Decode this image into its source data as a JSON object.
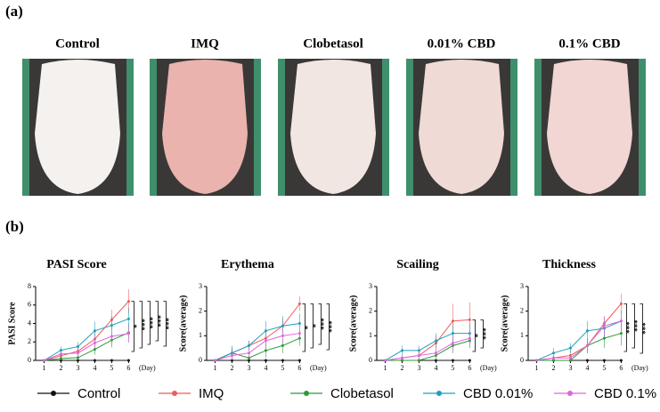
{
  "panels": {
    "a": "(a)",
    "b": "(b)"
  },
  "photos": [
    "Control",
    "IMQ",
    "Clobetasol",
    "0.01% CBD",
    "0.1% CBD"
  ],
  "chart_data": [
    {
      "type": "line",
      "title": "PASI Score",
      "y_label": "PASI Score",
      "x_unit": "(Day)",
      "x": [
        1,
        2,
        3,
        4,
        5,
        6
      ],
      "xlim": [
        0.5,
        6.4
      ],
      "xticks": [
        1,
        2,
        3,
        4,
        5,
        6
      ],
      "ylim": [
        0,
        8
      ],
      "yticks": [
        0,
        2,
        4,
        6,
        8
      ],
      "series": [
        {
          "name": "Control",
          "color": "#111111",
          "values": [
            0,
            0,
            0,
            0,
            0,
            0
          ],
          "errors": [
            0,
            0,
            0,
            0,
            0,
            0
          ]
        },
        {
          "name": "IMQ",
          "color": "#ef5b5b",
          "values": [
            0,
            0.5,
            1.0,
            2.3,
            4.4,
            6.4
          ],
          "errors": [
            0,
            0.3,
            0.4,
            0.8,
            1.1,
            1.3
          ]
        },
        {
          "name": "Clobetasol",
          "color": "#2b9a36",
          "values": [
            0,
            0.2,
            0.3,
            1.2,
            2.2,
            3.0
          ],
          "errors": [
            0,
            0.2,
            0.3,
            0.6,
            0.8,
            1.0
          ]
        },
        {
          "name": "CBD 0.01%",
          "color": "#1e9fbb",
          "values": [
            0,
            1.1,
            1.5,
            3.2,
            3.8,
            4.5
          ],
          "errors": [
            0,
            0.4,
            0.5,
            1.0,
            1.0,
            1.2
          ]
        },
        {
          "name": "CBD 0.1%",
          "color": "#e064e0",
          "values": [
            0,
            0.7,
            0.8,
            1.9,
            2.6,
            2.9
          ],
          "errors": [
            0,
            0.3,
            0.4,
            0.7,
            0.9,
            1.0
          ]
        }
      ],
      "annotations": [
        "*",
        "***",
        "***",
        "***",
        "***"
      ]
    },
    {
      "type": "line",
      "title": "Erythema",
      "y_label": "Score(average)",
      "x_unit": "(Day)",
      "x": [
        1,
        2,
        3,
        4,
        5,
        6
      ],
      "xlim": [
        0.5,
        6.4
      ],
      "xticks": [
        1,
        2,
        3,
        4,
        5,
        6
      ],
      "ylim": [
        0,
        3
      ],
      "yticks": [
        0,
        1,
        2,
        3
      ],
      "series": [
        {
          "values": [
            0,
            0,
            0,
            0,
            0,
            0
          ],
          "errors": [
            0,
            0,
            0,
            0,
            0,
            0
          ]
        },
        {
          "values": [
            0,
            0.3,
            0.6,
            0.9,
            1.4,
            2.3
          ],
          "errors": [
            0,
            0.2,
            0.2,
            0.3,
            0.3,
            0.3
          ]
        },
        {
          "values": [
            0,
            0.3,
            0.1,
            0.4,
            0.6,
            0.9
          ],
          "errors": [
            0,
            0.2,
            0.1,
            0.3,
            0.3,
            0.3
          ]
        },
        {
          "values": [
            0,
            0.3,
            0.6,
            1.2,
            1.4,
            1.5
          ],
          "errors": [
            0,
            0.3,
            0.2,
            0.4,
            0.4,
            0.4
          ]
        },
        {
          "values": [
            0,
            0.2,
            0.3,
            0.8,
            1.0,
            1.1
          ],
          "errors": [
            0,
            0.2,
            0.2,
            0.3,
            0.3,
            0.3
          ]
        }
      ],
      "annotations": [
        "*",
        "*",
        "***",
        "***"
      ]
    },
    {
      "type": "line",
      "title": "Scailing",
      "y_label": "Score(average)",
      "x_unit": "(Day)",
      "x": [
        1,
        2,
        3,
        4,
        5,
        6
      ],
      "xlim": [
        0.5,
        6.4
      ],
      "xticks": [
        1,
        2,
        3,
        4,
        5,
        6
      ],
      "ylim": [
        0,
        3
      ],
      "yticks": [
        0,
        1,
        2,
        3
      ],
      "series": [
        {
          "values": [
            0,
            0,
            0,
            0,
            0,
            0
          ],
          "errors": [
            0,
            0,
            0,
            0,
            0,
            0
          ]
        },
        {
          "values": [
            0,
            0.1,
            0.2,
            0.7,
            1.6,
            1.65
          ],
          "errors": [
            0,
            0.1,
            0.2,
            0.3,
            0.7,
            0.7
          ]
        },
        {
          "values": [
            0,
            0,
            0,
            0.2,
            0.6,
            0.8
          ],
          "errors": [
            0,
            0,
            0,
            0.2,
            0.3,
            0.3
          ]
        },
        {
          "values": [
            0,
            0.4,
            0.4,
            0.8,
            1.1,
            1.1
          ],
          "errors": [
            0,
            0.2,
            0.2,
            0.3,
            0.4,
            0.4
          ]
        },
        {
          "values": [
            0,
            0.1,
            0.2,
            0.3,
            0.7,
            0.9
          ],
          "errors": [
            0,
            0.1,
            0.2,
            0.2,
            0.3,
            0.3
          ]
        }
      ],
      "annotations": [
        "*",
        "***"
      ]
    },
    {
      "type": "line",
      "title": "Thickness",
      "y_label": "Score(average)",
      "x_unit": "(Day)",
      "x": [
        1,
        2,
        3,
        4,
        5,
        6
      ],
      "xlim": [
        0.5,
        6.4
      ],
      "xticks": [
        1,
        2,
        3,
        4,
        5,
        6
      ],
      "ylim": [
        0,
        3
      ],
      "yticks": [
        0,
        1,
        2,
        3
      ],
      "series": [
        {
          "values": [
            0,
            0,
            0,
            0,
            0,
            0
          ],
          "errors": [
            0,
            0,
            0,
            0,
            0,
            0
          ]
        },
        {
          "values": [
            0,
            0.1,
            0.2,
            0.6,
            1.5,
            2.3
          ],
          "errors": [
            0,
            0.1,
            0.2,
            0.3,
            0.3,
            0.4
          ]
        },
        {
          "values": [
            0,
            0,
            0,
            0.6,
            0.9,
            1.1
          ],
          "errors": [
            0,
            0,
            0,
            0.3,
            0.4,
            0.5
          ]
        },
        {
          "values": [
            0,
            0.3,
            0.5,
            1.2,
            1.3,
            1.6
          ],
          "errors": [
            0,
            0.2,
            0.2,
            0.4,
            0.4,
            0.4
          ]
        },
        {
          "values": [
            0,
            0.1,
            0.1,
            0.6,
            1.4,
            1.6
          ],
          "errors": [
            0,
            0.1,
            0.1,
            0.3,
            0.4,
            0.4
          ]
        }
      ],
      "annotations": [
        "***",
        "***",
        "***"
      ]
    }
  ]
}
